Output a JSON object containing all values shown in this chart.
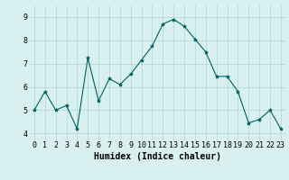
{
  "x": [
    0,
    1,
    2,
    3,
    4,
    5,
    6,
    7,
    8,
    9,
    10,
    11,
    12,
    13,
    14,
    15,
    16,
    17,
    18,
    19,
    20,
    21,
    22,
    23
  ],
  "y": [
    5.0,
    5.8,
    5.0,
    5.2,
    4.2,
    7.25,
    5.4,
    6.35,
    6.1,
    6.55,
    7.15,
    7.75,
    8.7,
    8.9,
    8.6,
    8.05,
    7.5,
    6.45,
    6.45,
    5.8,
    4.45,
    4.6,
    5.0,
    4.2
  ],
  "line_color": "#006060",
  "marker": "*",
  "marker_size": 3,
  "xlabel": "Humidex (Indice chaleur)",
  "xlim": [
    -0.5,
    23.5
  ],
  "ylim": [
    3.7,
    9.5
  ],
  "yticks": [
    4,
    5,
    6,
    7,
    8,
    9
  ],
  "xticks": [
    0,
    1,
    2,
    3,
    4,
    5,
    6,
    7,
    8,
    9,
    10,
    11,
    12,
    13,
    14,
    15,
    16,
    17,
    18,
    19,
    20,
    21,
    22,
    23
  ],
  "bg_color": "#d8f0f0",
  "grid_color": "#b8d8d8",
  "tick_label_fontsize": 6,
  "xlabel_fontsize": 7
}
